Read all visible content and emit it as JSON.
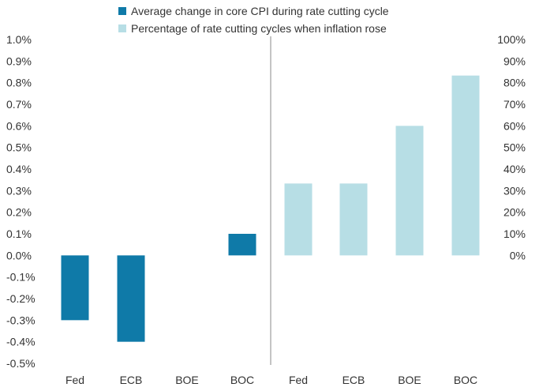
{
  "chart_data": {
    "type": "bar",
    "legend": {
      "placement": "top-center"
    },
    "grid": false,
    "colors": {
      "series_1": "#0f7aa8",
      "series_2": "#b7dee5"
    },
    "series": [
      {
        "name": "Average change in core CPI during rate cutting cycle",
        "axis": "left",
        "categories": [
          "Fed",
          "ECB",
          "BOE",
          "BOC"
        ],
        "values": [
          -0.3,
          -0.4,
          0.0,
          0.1
        ]
      },
      {
        "name": "Percentage of rate cutting cycles when inflation rose",
        "axis": "right",
        "categories": [
          "Fed",
          "ECB",
          "BOE",
          "BOC"
        ],
        "values": [
          33.3,
          33.3,
          60,
          83.3
        ]
      }
    ],
    "left_axis": {
      "ylim": [
        -0.5,
        1.0
      ],
      "ticks": [
        1.0,
        0.9,
        0.8,
        0.7,
        0.6,
        0.5,
        0.4,
        0.3,
        0.2,
        0.1,
        0.0,
        -0.1,
        -0.2,
        -0.3,
        -0.4,
        -0.5
      ],
      "tick_labels": [
        "1.0%",
        "0.9%",
        "0.8%",
        "0.7%",
        "0.6%",
        "0.5%",
        "0.4%",
        "0.3%",
        "0.2%",
        "0.1%",
        "0.0%",
        "-0.1%",
        "-0.2%",
        "-0.3%",
        "-0.4%",
        "-0.5%"
      ]
    },
    "right_axis": {
      "ylim": [
        0,
        100
      ],
      "ticks": [
        100,
        90,
        80,
        70,
        60,
        50,
        40,
        30,
        20,
        10,
        0
      ],
      "tick_labels": [
        "100%",
        "90%",
        "80%",
        "70%",
        "60%",
        "50%",
        "40%",
        "30%",
        "20%",
        "10%",
        "0%"
      ]
    }
  }
}
